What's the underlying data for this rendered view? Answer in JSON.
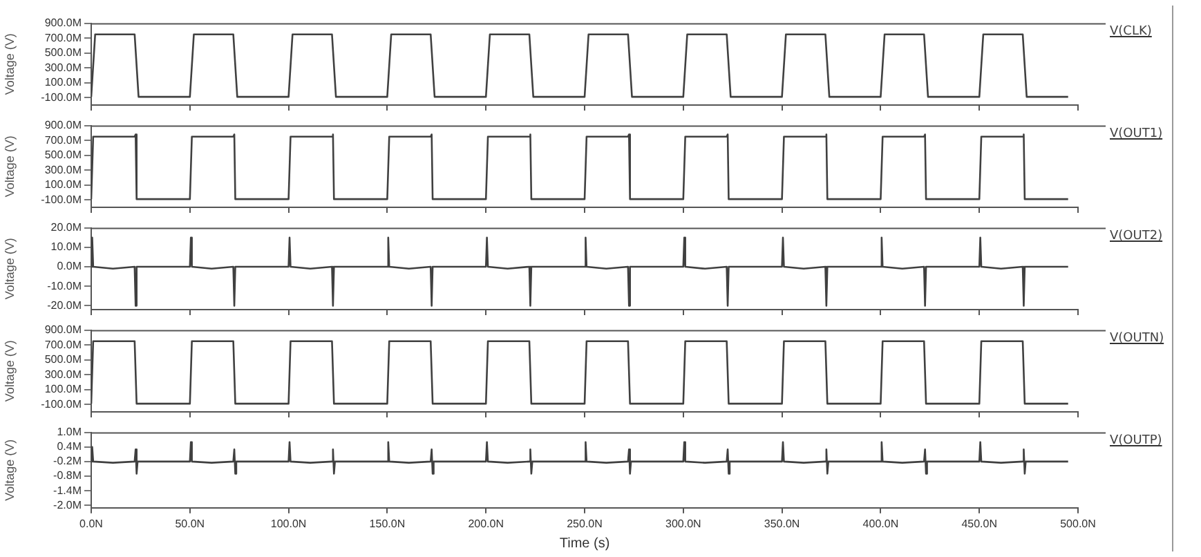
{
  "chart_data": [
    {
      "type": "line",
      "ylabel": "Voltage (V)",
      "legend": "right",
      "tick_labels": "y",
      "xlim": [
        0,
        500
      ],
      "xticks": [
        {
          "value": 0,
          "label": null
        },
        {
          "value": 50,
          "label": null
        },
        {
          "value": 100,
          "label": null
        },
        {
          "value": 150,
          "label": null
        },
        {
          "value": 200,
          "label": null
        },
        {
          "value": 250,
          "label": null
        },
        {
          "value": 300,
          "label": null
        },
        {
          "value": 350,
          "label": null
        },
        {
          "value": 400,
          "label": null
        },
        {
          "value": 450,
          "label": null
        },
        {
          "value": 500,
          "label": null
        }
      ],
      "ylim": [
        -200,
        900
      ],
      "yticks": [
        {
          "value": 900,
          "label": "900.0M"
        },
        {
          "value": 700,
          "label": "700.0M"
        },
        {
          "value": 500,
          "label": "500.0M"
        },
        {
          "value": 300,
          "label": "300.0M"
        },
        {
          "value": 100,
          "label": "100.0M"
        },
        {
          "value": -100,
          "label": "-100.0M"
        }
      ],
      "marker": "none",
      "series": [
        {
          "name": "V(CLK)",
          "color": "#404040",
          "x": [
            0,
            2,
            22,
            24,
            50,
            52,
            72,
            74,
            100,
            102,
            122,
            124,
            150,
            152,
            172,
            174,
            200,
            202,
            222,
            224,
            250,
            252,
            272,
            274,
            300,
            302,
            322,
            324,
            350,
            352,
            372,
            374,
            400,
            402,
            422,
            424,
            450,
            452,
            472,
            474,
            495
          ],
          "values": [
            -90,
            750,
            750,
            -90,
            -90,
            750,
            750,
            -90,
            -90,
            750,
            750,
            -90,
            -90,
            750,
            750,
            -90,
            -90,
            750,
            750,
            -90,
            -90,
            750,
            750,
            -90,
            -90,
            750,
            750,
            -90,
            -90,
            750,
            750,
            -90,
            -90,
            750,
            750,
            -90,
            -90,
            750,
            750,
            -90,
            -90
          ]
        }
      ]
    },
    {
      "type": "line",
      "ylabel": "Voltage (V)",
      "legend": "right",
      "tick_labels": "y",
      "xlim": [
        0,
        500
      ],
      "xticks": [
        {
          "value": 0,
          "label": null
        },
        {
          "value": 50,
          "label": null
        },
        {
          "value": 100,
          "label": null
        },
        {
          "value": 150,
          "label": null
        },
        {
          "value": 200,
          "label": null
        },
        {
          "value": 250,
          "label": null
        },
        {
          "value": 300,
          "label": null
        },
        {
          "value": 350,
          "label": null
        },
        {
          "value": 400,
          "label": null
        },
        {
          "value": 450,
          "label": null
        },
        {
          "value": 500,
          "label": null
        }
      ],
      "ylim": [
        -200,
        900
      ],
      "yticks": [
        {
          "value": 900,
          "label": "900.0M"
        },
        {
          "value": 700,
          "label": "700.0M"
        },
        {
          "value": 500,
          "label": "500.0M"
        },
        {
          "value": 300,
          "label": "300.0M"
        },
        {
          "value": 100,
          "label": "100.0M"
        },
        {
          "value": -100,
          "label": "-100.0M"
        }
      ],
      "marker": "none",
      "series": [
        {
          "name": "V(OUT1)",
          "color": "#404040",
          "x": [
            0,
            1,
            22,
            22.5,
            23,
            50,
            51,
            72,
            72.5,
            73,
            100,
            101,
            122,
            122.5,
            123,
            150,
            151,
            172,
            172.5,
            173,
            200,
            201,
            222,
            222.5,
            223,
            250,
            251,
            272,
            272.5,
            273,
            300,
            301,
            322,
            322.5,
            323,
            350,
            351,
            372,
            372.5,
            373,
            400,
            401,
            422,
            422.5,
            423,
            450,
            451,
            472,
            472.5,
            473,
            495
          ],
          "values": [
            -90,
            750,
            750,
            780,
            -90,
            -90,
            750,
            750,
            780,
            -90,
            -90,
            750,
            750,
            780,
            -90,
            -90,
            750,
            750,
            780,
            -90,
            -90,
            750,
            750,
            780,
            -90,
            -90,
            750,
            750,
            780,
            -90,
            -90,
            750,
            750,
            780,
            -90,
            -90,
            750,
            750,
            780,
            -90,
            -90,
            750,
            750,
            780,
            -90,
            -90,
            750,
            750,
            780,
            -90,
            -90
          ]
        }
      ]
    },
    {
      "type": "line",
      "ylabel": "Voltage (V)",
      "legend": "right",
      "tick_labels": "y",
      "xlim": [
        0,
        500
      ],
      "xticks": [
        {
          "value": 0,
          "label": null
        },
        {
          "value": 50,
          "label": null
        },
        {
          "value": 100,
          "label": null
        },
        {
          "value": 150,
          "label": null
        },
        {
          "value": 200,
          "label": null
        },
        {
          "value": 250,
          "label": null
        },
        {
          "value": 300,
          "label": null
        },
        {
          "value": 350,
          "label": null
        },
        {
          "value": 400,
          "label": null
        },
        {
          "value": 450,
          "label": null
        },
        {
          "value": 500,
          "label": null
        }
      ],
      "ylim": [
        -22,
        20
      ],
      "yticks": [
        {
          "value": 20,
          "label": "20.0M"
        },
        {
          "value": 10,
          "label": "10.0M"
        },
        {
          "value": 0,
          "label": "0.0M"
        },
        {
          "value": -10,
          "label": "-10.0M"
        },
        {
          "value": -20,
          "label": "-20.0M"
        }
      ],
      "marker": "none",
      "series": [
        {
          "name": "V(OUT2)",
          "color": "#404040",
          "x": [
            0,
            0.5,
            1,
            11,
            22,
            22.5,
            23,
            50,
            50.5,
            51,
            61,
            72,
            72.5,
            73,
            100,
            100.5,
            101,
            111,
            122,
            122.5,
            123,
            150,
            150.5,
            151,
            161,
            172,
            172.5,
            173,
            200,
            200.5,
            201,
            211,
            222,
            222.5,
            223,
            250,
            250.5,
            251,
            261,
            272,
            272.5,
            273,
            300,
            300.5,
            301,
            311,
            322,
            322.5,
            323,
            350,
            350.5,
            351,
            361,
            372,
            372.5,
            373,
            400,
            400.5,
            401,
            411,
            422,
            422.5,
            423,
            450,
            450.5,
            451,
            461,
            472,
            472.5,
            473,
            495
          ],
          "values": [
            0,
            15,
            0,
            -1,
            0,
            -20,
            0,
            0,
            15,
            0,
            -1,
            0,
            -20,
            0,
            0,
            15,
            0,
            -1,
            0,
            -20,
            0,
            0,
            15,
            0,
            -1,
            0,
            -20,
            0,
            0,
            15,
            0,
            -1,
            0,
            -20,
            0,
            0,
            15,
            0,
            -1,
            0,
            -20,
            0,
            0,
            15,
            0,
            -1,
            0,
            -20,
            0,
            0,
            15,
            0,
            -1,
            0,
            -20,
            0,
            0,
            15,
            0,
            -1,
            0,
            -20,
            0,
            0,
            15,
            0,
            -1,
            0,
            -20,
            0,
            0
          ]
        }
      ]
    },
    {
      "type": "line",
      "ylabel": "Voltage (V)",
      "legend": "right",
      "tick_labels": "y",
      "xlim": [
        0,
        500
      ],
      "xticks": [
        {
          "value": 0,
          "label": null
        },
        {
          "value": 50,
          "label": null
        },
        {
          "value": 100,
          "label": null
        },
        {
          "value": 150,
          "label": null
        },
        {
          "value": 200,
          "label": null
        },
        {
          "value": 250,
          "label": null
        },
        {
          "value": 300,
          "label": null
        },
        {
          "value": 350,
          "label": null
        },
        {
          "value": 400,
          "label": null
        },
        {
          "value": 450,
          "label": null
        },
        {
          "value": 500,
          "label": null
        }
      ],
      "ylim": [
        -200,
        900
      ],
      "yticks": [
        {
          "value": 900,
          "label": "900.0M"
        },
        {
          "value": 700,
          "label": "700.0M"
        },
        {
          "value": 500,
          "label": "500.0M"
        },
        {
          "value": 300,
          "label": "300.0M"
        },
        {
          "value": 100,
          "label": "100.0M"
        },
        {
          "value": -100,
          "label": "-100.0M"
        }
      ],
      "marker": "none",
      "series": [
        {
          "name": "V(OUTN)",
          "color": "#404040",
          "x": [
            0,
            1,
            22,
            23,
            50,
            51,
            72,
            73,
            100,
            101,
            122,
            123,
            150,
            151,
            172,
            173,
            200,
            201,
            222,
            223,
            250,
            251,
            272,
            273,
            300,
            301,
            322,
            323,
            350,
            351,
            372,
            373,
            400,
            401,
            422,
            423,
            450,
            451,
            472,
            473,
            495
          ],
          "values": [
            -90,
            750,
            750,
            -90,
            -90,
            750,
            750,
            -90,
            -90,
            750,
            750,
            -90,
            -90,
            750,
            750,
            -90,
            -90,
            750,
            750,
            -90,
            -90,
            750,
            750,
            -90,
            -90,
            750,
            750,
            -90,
            -90,
            750,
            750,
            -90,
            -90,
            750,
            750,
            -90,
            -90,
            750,
            750,
            -90,
            -90
          ]
        }
      ]
    },
    {
      "type": "line",
      "ylabel": "Voltage (V)",
      "xlabel": "Time (s)",
      "legend": "right",
      "xlim": [
        0,
        500
      ],
      "xticks": [
        {
          "value": 0,
          "label": "0.0N"
        },
        {
          "value": 50,
          "label": "50.0N"
        },
        {
          "value": 100,
          "label": "100.0N"
        },
        {
          "value": 150,
          "label": "150.0N"
        },
        {
          "value": 200,
          "label": "200.0N"
        },
        {
          "value": 250,
          "label": "250.0N"
        },
        {
          "value": 300,
          "label": "300.0N"
        },
        {
          "value": 350,
          "label": "350.0N"
        },
        {
          "value": 400,
          "label": "400.0N"
        },
        {
          "value": 450,
          "label": "450.0N"
        },
        {
          "value": 500,
          "label": "500.0N"
        }
      ],
      "ylim": [
        -2.1,
        1.0
      ],
      "yticks": [
        {
          "value": 1.0,
          "label": "1.0M"
        },
        {
          "value": 0.4,
          "label": "0.4M"
        },
        {
          "value": -0.2,
          "label": "-0.2M"
        },
        {
          "value": -0.8,
          "label": "-0.8M"
        },
        {
          "value": -1.4,
          "label": "-1.4M"
        },
        {
          "value": -2.0,
          "label": "-2.0M"
        }
      ],
      "marker": "none",
      "series": [
        {
          "name": "V(OUTP)",
          "color": "#404040",
          "x": [
            0,
            0.5,
            1,
            11,
            22,
            22.5,
            23,
            23.5,
            50,
            50.5,
            51,
            61,
            72,
            72.5,
            73,
            73.5,
            100,
            100.5,
            101,
            111,
            122,
            122.5,
            123,
            123.5,
            150,
            150.5,
            151,
            161,
            172,
            172.5,
            173,
            173.5,
            200,
            200.5,
            201,
            211,
            222,
            222.5,
            223,
            223.5,
            250,
            250.5,
            251,
            261,
            272,
            272.5,
            273,
            273.5,
            300,
            300.5,
            301,
            311,
            322,
            322.5,
            323,
            323.5,
            350,
            350.5,
            351,
            361,
            372,
            372.5,
            373,
            373.5,
            400,
            400.5,
            401,
            411,
            422,
            422.5,
            423,
            423.5,
            450,
            450.5,
            451,
            461,
            472,
            472.5,
            473,
            473.5,
            495
          ],
          "values": [
            -0.2,
            0.4,
            -0.2,
            -0.25,
            -0.2,
            0.3,
            -0.7,
            -0.2,
            -0.2,
            0.6,
            -0.2,
            -0.25,
            -0.2,
            0.3,
            -0.7,
            -0.2,
            -0.2,
            0.6,
            -0.2,
            -0.25,
            -0.2,
            0.3,
            -0.7,
            -0.2,
            -0.2,
            0.6,
            -0.2,
            -0.25,
            -0.2,
            0.3,
            -0.7,
            -0.2,
            -0.2,
            0.6,
            -0.2,
            -0.25,
            -0.2,
            0.3,
            -0.7,
            -0.2,
            -0.2,
            0.6,
            -0.2,
            -0.25,
            -0.2,
            0.3,
            -0.7,
            -0.2,
            -0.2,
            0.6,
            -0.2,
            -0.25,
            -0.2,
            0.3,
            -0.7,
            -0.2,
            -0.2,
            0.6,
            -0.2,
            -0.25,
            -0.2,
            0.3,
            -0.7,
            -0.2,
            -0.2,
            0.6,
            -0.2,
            -0.25,
            -0.2,
            0.3,
            -0.7,
            -0.2,
            -0.2,
            0.6,
            -0.2,
            -0.25,
            -0.2,
            0.3,
            -0.7,
            -0.2,
            -0.2
          ]
        }
      ]
    }
  ]
}
